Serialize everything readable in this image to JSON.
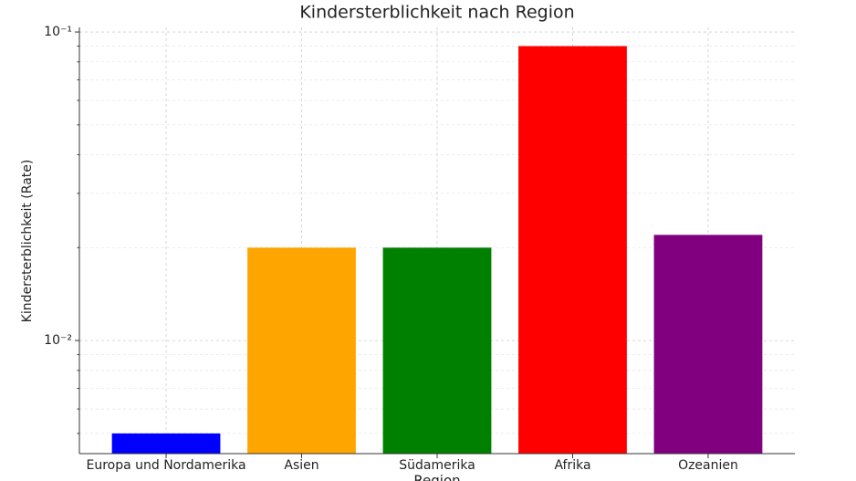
{
  "chart_data": {
    "type": "bar",
    "title": "Kindersterblichkeit nach Region",
    "x_label": "Region",
    "y_label": "Kindersterblichkeit (Rate)",
    "categories": [
      "Europa und Nordamerika",
      "Asien",
      "Südamerika",
      "Afrika",
      "Ozeanien"
    ],
    "values": [
      0.005,
      0.02,
      0.02,
      0.09,
      0.022
    ],
    "colors": [
      "#0000ff",
      "#ffa500",
      "#008000",
      "#ff0000",
      "#800080"
    ],
    "ylim": [
      0.0043,
      0.1035
    ],
    "log_scale": true,
    "yticks": [
      {
        "value": 0.01,
        "label": "10⁻²"
      },
      {
        "value": 0.1,
        "label": "10⁻¹"
      }
    ],
    "grid": true
  }
}
